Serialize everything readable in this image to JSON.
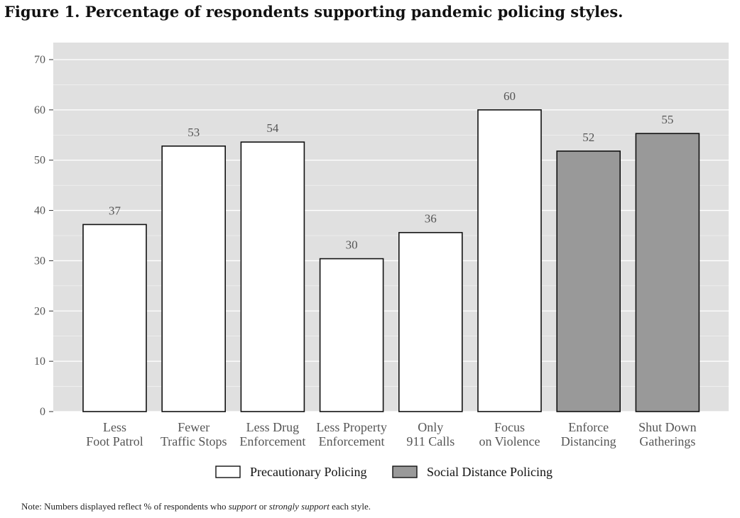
{
  "figure": {
    "title": "Figure 1. Percentage of respondents supporting pandemic policing styles."
  },
  "note": {
    "prefix": "Note: Numbers displayed reflect % of respondents who ",
    "em1": "support",
    "mid": " or ",
    "em2": "strongly support",
    "suffix": " each style."
  },
  "colors": {
    "panel": "#e0e0e0",
    "grid": "#ffffff",
    "precautionary": "#ffffff",
    "social": "#999999",
    "bar_stroke": "#111111"
  },
  "chart_data": {
    "type": "bar",
    "title": "Figure 1. Percentage of respondents supporting pandemic policing styles.",
    "xlabel": "",
    "ylabel": "",
    "ylim": [
      0,
      70
    ],
    "yticks": [
      0,
      10,
      20,
      30,
      40,
      50,
      60,
      70
    ],
    "grid": true,
    "legend_position": "bottom",
    "categories": [
      [
        "Less",
        "Foot Patrol"
      ],
      [
        "Fewer",
        "Traffic Stops"
      ],
      [
        "Less Drug",
        "Enforcement"
      ],
      [
        "Less Property",
        "Enforcement"
      ],
      [
        "Only",
        "911 Calls"
      ],
      [
        "Focus",
        "on Violence"
      ],
      [
        "Enforce",
        "Distancing"
      ],
      [
        "Shut Down",
        "Gatherings"
      ]
    ],
    "values": [
      37.2,
      52.8,
      53.6,
      30.4,
      35.6,
      60.0,
      51.8,
      55.3
    ],
    "labels": [
      "37",
      "53",
      "54",
      "30",
      "36",
      "60",
      "52",
      "55"
    ],
    "groups": [
      "precautionary",
      "precautionary",
      "precautionary",
      "precautionary",
      "precautionary",
      "precautionary",
      "social",
      "social"
    ],
    "legend": [
      {
        "key": "precautionary",
        "label": "Precautionary Policing"
      },
      {
        "key": "social",
        "label": "Social Distance Policing"
      }
    ]
  }
}
